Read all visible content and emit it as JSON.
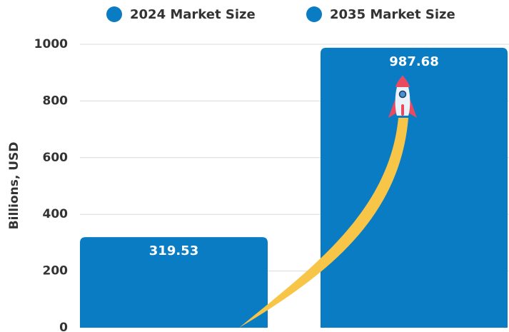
{
  "chart_data": {
    "type": "bar",
    "categories": [
      null
    ],
    "series": [
      {
        "name": "2024 Market Size",
        "color": "#0a7cc4",
        "values": [
          319.53
        ]
      },
      {
        "name": "2035 Market Size",
        "color": "#0a7cc4",
        "values": [
          987.68
        ]
      }
    ],
    "y_label": "Billions, USD",
    "ylim": [
      0,
      1000
    ],
    "yticks": [
      0,
      200,
      400,
      600,
      800,
      1000
    ],
    "grid": true
  }
}
